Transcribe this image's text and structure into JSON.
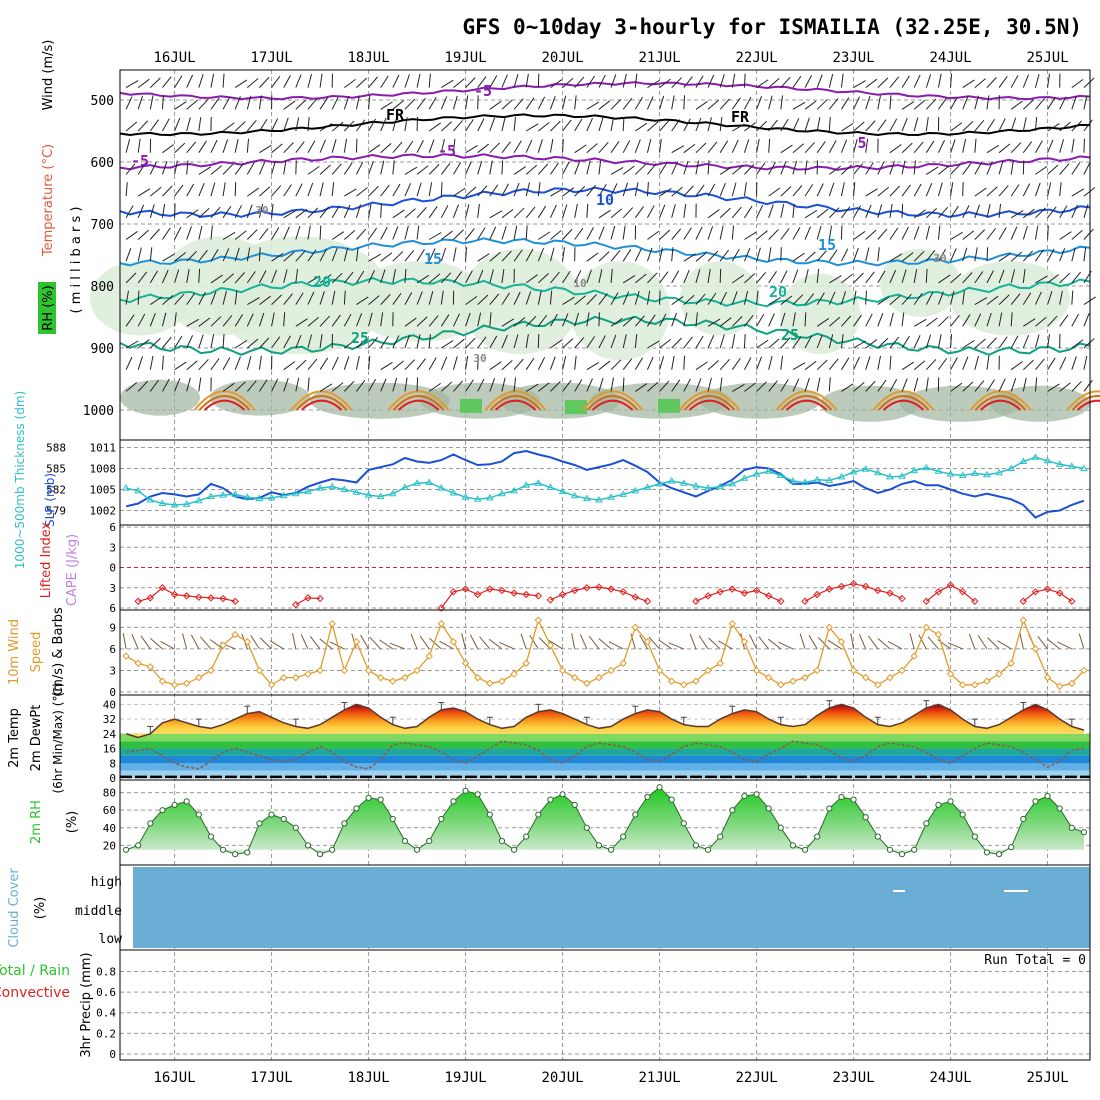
{
  "title": "GFS 0~10day 3-hourly for ISMAILIA (32.25E, 30.5N)",
  "date_labels": [
    "16JUL",
    "17JUL",
    "18JUL",
    "19JUL",
    "20JUL",
    "21JUL",
    "22JUL",
    "23JUL",
    "24JUL",
    "25JUL"
  ],
  "colors": {
    "purple": "#8a1ab0",
    "black": "#000000",
    "blue": "#1a4fd6",
    "skyblue": "#1e90d8",
    "teal": "#14b39a",
    "orange": "#e39a2a",
    "red": "#e02020",
    "cyan": "#2ac0c8",
    "grid": "#aaaaaa",
    "cloud": "#6aaed6",
    "rh_green": "#2ec42e",
    "cape": "#c080e0"
  },
  "panels": {
    "upper": {
      "ylabel_parts": [
        "Wind (m/s)",
        "Temperature (°C)",
        "RH (%)"
      ],
      "ylabel_inner": "( m i l l i b a r s )",
      "yticks": [
        500,
        600,
        700,
        800,
        900,
        1000
      ],
      "contour_labels": [
        "-5",
        "FR",
        "FR",
        "-5",
        "-5",
        "5",
        "10",
        "15",
        "15",
        "20",
        "20",
        "25",
        "25",
        "30",
        "30",
        "30",
        "10"
      ]
    },
    "slp": {
      "ylabel_left": "1000~500mb Thickness (dm)",
      "ylabel_right": "SLP (mb)",
      "thickness_ticks": [
        579,
        582,
        585,
        588
      ],
      "slp_ticks": [
        1002,
        1005,
        1008,
        1011
      ]
    },
    "cape": {
      "ylabel_left": "Lifted Index",
      "ylabel_right": "CAPE (J/kg)",
      "yticks": [
        "6",
        "3",
        "0",
        "3",
        "6"
      ]
    },
    "wind10": {
      "ylabel_1": "10m Wind",
      "ylabel_2": "Speed",
      "ylabel_3": "(m/s) & Barbs",
      "yticks": [
        0,
        3,
        6,
        9
      ]
    },
    "temp2m": {
      "ylabel_1": "2m Temp",
      "ylabel_2": "2m DewPt",
      "ylabel_3": "(6hr Min/Max) (°C)",
      "yticks": [
        0,
        8,
        16,
        24,
        32,
        40
      ]
    },
    "rh2m": {
      "ylabel_1": "2m RH",
      "ylabel_2": "(%)",
      "yticks": [
        20,
        40,
        60,
        80
      ]
    },
    "cloud": {
      "ylabel_1": "Cloud Cover",
      "ylabel_2": "(%)",
      "levels": [
        "high",
        "middle",
        "low"
      ]
    },
    "precip": {
      "ylabel_1": "Total / Rain",
      "ylabel_2": "Convective",
      "ylabel_3": "3hr Precip (mm)",
      "yticks": [
        "0",
        "0.2",
        "0.4",
        "0.6",
        "0.8"
      ],
      "run_total": "Run Total = 0"
    }
  },
  "chart_data": {
    "type": "line",
    "x_start": "15JUL 12Z",
    "x_step_hours": 3,
    "x_count": 80,
    "slp_mb": [
      1002.6,
      1003.0,
      1004.0,
      1004.5,
      1004.3,
      1004.0,
      1004.3,
      1005.8,
      1005.2,
      1004.0,
      1003.6,
      1003.8,
      1004.6,
      1004.2,
      1004.5,
      1005.4,
      1006.0,
      1006.5,
      1006.3,
      1006.0,
      1007.8,
      1008.2,
      1008.6,
      1009.5,
      1009.0,
      1008.8,
      1009.2,
      1010.0,
      1009.2,
      1008.5,
      1008.6,
      1009.0,
      1010.2,
      1010.5,
      1010.0,
      1009.6,
      1009.0,
      1008.5,
      1007.8,
      1008.2,
      1008.6,
      1009.2,
      1008.4,
      1007.5,
      1006.0,
      1005.2,
      1004.6,
      1004.0,
      1004.8,
      1005.5,
      1006.4,
      1007.8,
      1008.2,
      1008.0,
      1007.2,
      1005.8,
      1005.8,
      1006.0,
      1005.5,
      1005.8,
      1006.2,
      1005.2,
      1004.5,
      1005.0,
      1005.8,
      1006.2,
      1005.6,
      1005.6,
      1005.0,
      1004.4,
      1004.0,
      1004.4,
      1004.0,
      1003.6,
      1002.8,
      1001.0,
      1001.8,
      1002.0,
      1002.8,
      1003.4
    ],
    "thickness_dm": [
      582.2,
      581.8,
      580.5,
      580.0,
      579.8,
      579.9,
      580.4,
      581.0,
      581.2,
      581.3,
      580.9,
      580.7,
      580.8,
      581.1,
      581.4,
      581.7,
      582.2,
      582.4,
      582.0,
      581.6,
      581.2,
      581.0,
      581.4,
      582.3,
      582.9,
      583.0,
      582.2,
      581.5,
      580.9,
      580.6,
      580.8,
      581.4,
      581.8,
      582.6,
      582.9,
      582.3,
      581.7,
      581.1,
      580.7,
      580.5,
      580.9,
      581.3,
      581.8,
      582.3,
      582.8,
      583.2,
      582.9,
      582.5,
      582.2,
      582.4,
      582.8,
      583.6,
      584.2,
      584.6,
      584.0,
      583.2,
      583.0,
      583.4,
      583.3,
      583.8,
      584.5,
      584.9,
      584.4,
      583.8,
      583.9,
      584.7,
      585.1,
      584.6,
      584.2,
      584.0,
      584.3,
      584.1,
      584.4,
      585.0,
      586.0,
      586.6,
      586.1,
      585.6,
      585.3,
      585.0
    ],
    "lifted_index_segments": [
      {
        "start": 1,
        "values": [
          5,
          4.5,
          3,
          4,
          4.2,
          4.4,
          4.5,
          4.6,
          5
        ]
      },
      {
        "start": 14,
        "values": [
          5.5,
          4.5,
          4.6
        ]
      },
      {
        "start": 26,
        "values": [
          6,
          3.6,
          3.2,
          4.0,
          3.2,
          3.4,
          3.8,
          4.0,
          4.2
        ]
      },
      {
        "start": 35,
        "values": [
          4.8,
          4.0,
          3.4,
          3.0,
          2.9,
          3.2,
          3.6,
          4.4,
          5
        ]
      },
      {
        "start": 47,
        "values": [
          5,
          4.2,
          3.6,
          3.2,
          3.8,
          3.4,
          4.2,
          5.0
        ]
      },
      {
        "start": 56,
        "values": [
          5,
          4.0,
          3.2,
          2.8,
          2.4,
          2.8,
          3.4,
          3.8,
          4.6
        ]
      },
      {
        "start": 66,
        "values": [
          5,
          3.6,
          2.6,
          3.6,
          5.0
        ]
      },
      {
        "start": 74,
        "values": [
          5,
          3.6,
          3.2,
          3.8,
          5.0
        ]
      }
    ],
    "wind10_speed_ms": [
      5,
      4,
      3.5,
      1.5,
      1.0,
      1.2,
      2.0,
      3.0,
      6.5,
      8,
      7,
      3,
      1.0,
      2.0,
      2.0,
      2.5,
      3,
      9.5,
      3,
      7,
      3,
      2,
      1.5,
      2,
      3,
      5,
      9.5,
      7,
      4,
      2,
      1.2,
      1.5,
      2.5,
      4,
      10,
      6.5,
      3,
      2,
      1.2,
      2,
      3,
      4,
      9,
      7,
      3,
      1.5,
      1.0,
      1.5,
      3,
      4,
      9.5,
      7,
      3,
      2,
      1,
      1.5,
      2,
      3,
      9,
      7,
      3,
      2,
      1,
      2,
      3,
      5,
      9,
      8,
      2.5,
      1,
      1,
      1.5,
      2.5,
      4,
      10,
      6,
      2,
      0.8,
      1.2,
      3
    ],
    "temp2m_c": [
      24,
      22,
      24,
      30,
      32,
      30,
      28,
      27,
      29,
      32,
      35,
      36,
      33,
      30,
      28,
      27,
      29,
      33,
      37,
      40,
      38,
      33,
      29,
      27,
      28,
      33,
      37,
      38,
      36,
      32,
      29,
      27,
      28,
      33,
      36,
      37,
      35,
      32,
      29,
      27,
      28,
      32,
      35,
      37,
      36,
      32,
      29,
      28,
      28,
      32,
      35,
      37,
      36,
      32,
      29,
      28,
      29,
      34,
      38,
      40,
      38,
      33,
      29,
      28,
      30,
      34,
      38,
      40,
      37,
      32,
      28,
      27,
      29,
      33,
      37,
      40,
      37,
      32,
      28,
      26
    ],
    "dewpoint2m_c": [
      14,
      15,
      16,
      12,
      8,
      6,
      5,
      9,
      14,
      16,
      14,
      12,
      10,
      9,
      10,
      14,
      17,
      14,
      9,
      6,
      5,
      10,
      18,
      19,
      18,
      17,
      14,
      10,
      8,
      12,
      16,
      20,
      19,
      18,
      15,
      10,
      8,
      12,
      17,
      19,
      18,
      17,
      14,
      10,
      9,
      13,
      17,
      19,
      18,
      17,
      14,
      10,
      9,
      13,
      16,
      20,
      19,
      18,
      15,
      11,
      9,
      12,
      17,
      19,
      18,
      17,
      14,
      10,
      8,
      12,
      16,
      19,
      18,
      17,
      14,
      10,
      6,
      9,
      15,
      16
    ],
    "rh2m_pct": [
      15,
      20,
      45,
      60,
      66,
      70,
      55,
      30,
      15,
      10,
      12,
      45,
      55,
      50,
      40,
      20,
      10,
      15,
      45,
      62,
      74,
      72,
      50,
      25,
      15,
      25,
      50,
      70,
      82,
      78,
      55,
      25,
      15,
      30,
      55,
      72,
      78,
      66,
      40,
      20,
      15,
      30,
      55,
      75,
      86,
      72,
      45,
      20,
      15,
      30,
      60,
      76,
      78,
      62,
      40,
      20,
      15,
      30,
      62,
      75,
      72,
      52,
      30,
      15,
      10,
      15,
      45,
      66,
      70,
      55,
      30,
      12,
      10,
      18,
      50,
      70,
      76,
      62,
      40,
      35
    ]
  }
}
